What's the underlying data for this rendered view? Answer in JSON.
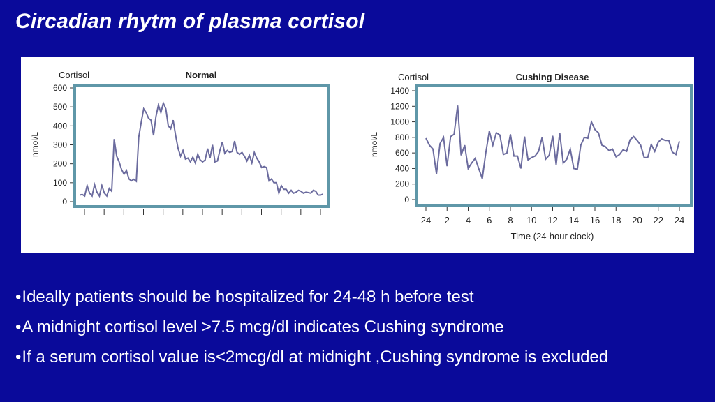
{
  "slide": {
    "title": "Circadian rhytm of plasma cortisol",
    "bullet_char": "•",
    "bullets": [
      "Ideally patients should be hospitalized for 24-48 h  before test",
      "A midnight cortisol level >7.5 mcg/dl indicates Cushing syndrome",
      "If a serum cortisol value is<2mcg/dl at midnight ,Cushing syndrome is excluded"
    ]
  },
  "colors": {
    "background": "#0a0a9a",
    "line": "#6b6b9e",
    "frame": "#5f97a8"
  },
  "chart_data": [
    {
      "type": "line",
      "title": "Normal",
      "axis_title": "Cortisol",
      "ylabel": "nmol/L",
      "ylim": [
        0,
        600
      ],
      "yticks": [
        0,
        100,
        200,
        300,
        400,
        500,
        600
      ],
      "xlim": [
        0,
        25
      ],
      "x_ticks_count": 13,
      "series": [
        {
          "name": "Normal",
          "values": [
            35,
            38,
            30,
            85,
            45,
            30,
            90,
            50,
            30,
            85,
            45,
            30,
            70,
            55,
            330,
            240,
            210,
            170,
            145,
            165,
            120,
            110,
            118,
            108,
            340,
            420,
            490,
            470,
            440,
            430,
            350,
            450,
            510,
            470,
            520,
            490,
            400,
            385,
            430,
            350,
            280,
            240,
            270,
            225,
            230,
            210,
            235,
            205,
            250,
            220,
            210,
            220,
            280,
            230,
            300,
            210,
            215,
            270,
            315,
            255,
            270,
            260,
            265,
            320,
            260,
            250,
            260,
            240,
            215,
            245,
            205,
            260,
            230,
            210,
            180,
            185,
            180,
            110,
            120,
            100,
            100,
            45,
            85,
            65,
            65,
            45,
            60,
            45,
            50,
            60,
            55,
            45,
            50,
            48,
            45,
            60,
            55,
            35,
            35,
            40
          ]
        }
      ]
    },
    {
      "type": "line",
      "title": "Cushing Disease",
      "axis_title": "Cortisol",
      "ylabel": "nmol/L",
      "xlabel": "Time (24-hour clock)",
      "ylim": [
        0,
        1400
      ],
      "yticks": [
        0,
        200,
        400,
        600,
        800,
        1000,
        1200,
        1400
      ],
      "xlim": [
        0,
        24
      ],
      "xtick_labels": [
        "24",
        "2",
        "4",
        "6",
        "8",
        "10",
        "12",
        "14",
        "16",
        "18",
        "20",
        "22",
        "24"
      ],
      "series": [
        {
          "name": "Cushing Disease",
          "values": [
            790,
            700,
            650,
            330,
            720,
            800,
            430,
            810,
            840,
            1210,
            570,
            700,
            400,
            470,
            530,
            400,
            270,
            600,
            880,
            700,
            860,
            830,
            580,
            600,
            840,
            560,
            560,
            400,
            810,
            510,
            540,
            560,
            620,
            800,
            520,
            570,
            820,
            450,
            860,
            470,
            520,
            650,
            400,
            390,
            700,
            800,
            790,
            1000,
            900,
            860,
            700,
            680,
            630,
            650,
            550,
            580,
            640,
            620,
            770,
            810,
            760,
            700,
            540,
            540,
            710,
            620,
            740,
            780,
            760,
            760,
            610,
            580,
            750
          ]
        }
      ]
    }
  ]
}
